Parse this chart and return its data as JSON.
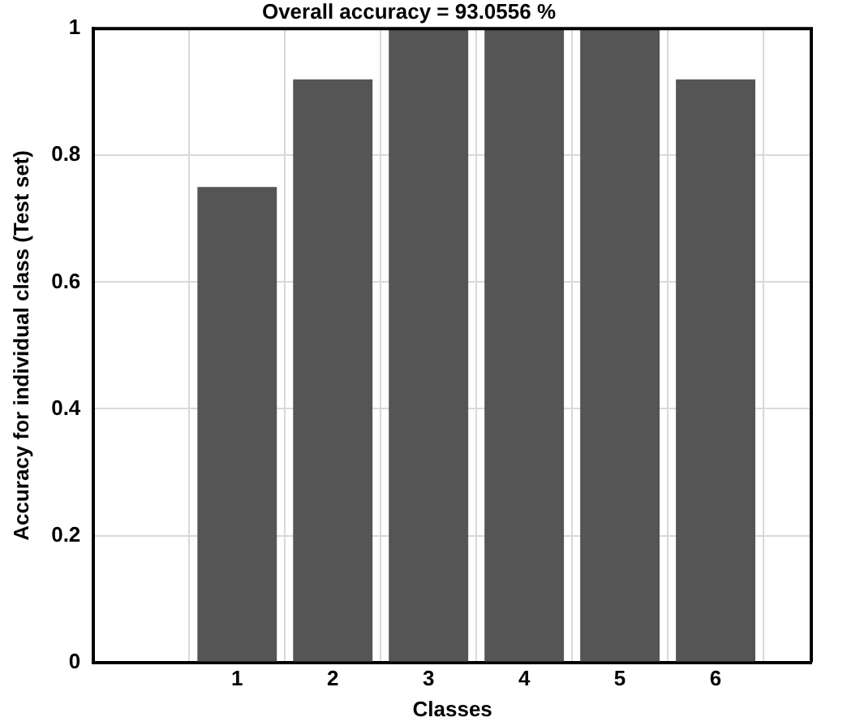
{
  "chart_data": {
    "type": "bar",
    "title": "Overall accuracy = 93.0556 %",
    "xlabel": "Classes",
    "ylabel": "Accuracy for individual class (Test set)",
    "x": [
      1,
      2,
      3,
      4,
      5,
      6
    ],
    "values": [
      0.75,
      0.92,
      1,
      1,
      1,
      0.92
    ],
    "color": "#555555",
    "xlim": [
      -0.5,
      7
    ],
    "xticks": [
      1,
      2,
      3,
      4,
      5,
      6
    ],
    "ylim": [
      0,
      1
    ],
    "yticks": [
      0,
      0.2,
      0.4,
      0.6,
      0.8,
      1
    ],
    "grid": true
  }
}
